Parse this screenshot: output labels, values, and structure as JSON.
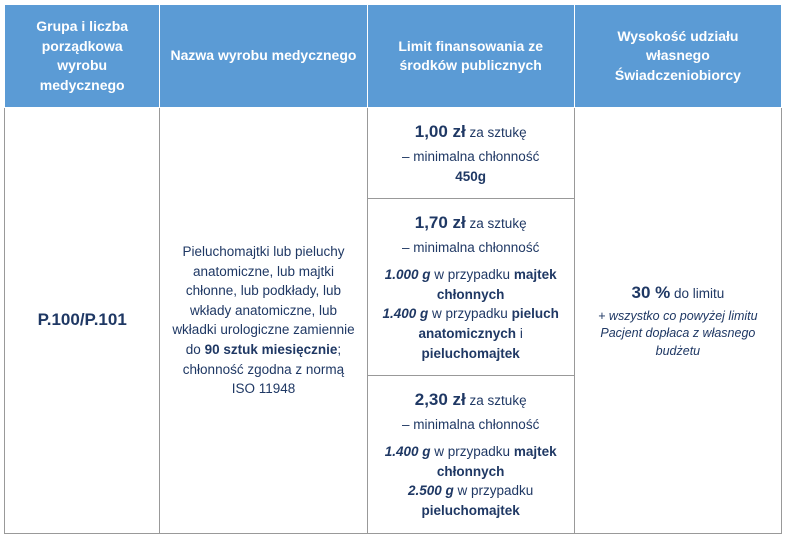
{
  "colors": {
    "header_bg": "#5b9bd5",
    "header_text": "#ffffff",
    "body_text": "#1f3864",
    "border": "#999999",
    "header_border": "#ffffff"
  },
  "headers": {
    "col1": "Grupa i liczba porządkowa wyrobu medycznego",
    "col2": "Nazwa wyrobu medycznego",
    "col3": "Limit finansowania ze środków publicznych",
    "col4": "Wysokość udziału własnego Świadczeniobiorcy"
  },
  "row1": {
    "code": "P.100/P.101",
    "description_pre": "Pieluchomajtki lub pieluchy anatomiczne, lub majtki chłonne, lub podkłady, lub wkłady anatomiczne, lub wkładki urologiczne zamiennie do ",
    "description_bold": "90 sztuk miesięcznie",
    "description_post": "; chłonność zgodna z normą ISO 11948",
    "tiers": [
      {
        "price": "1,00 zł",
        "unit": " za sztukę",
        "sub": "– minimalna chłonność",
        "weight_bold": "450g",
        "details": []
      },
      {
        "price": "1,70 zł",
        "unit": " za sztukę",
        "sub": "– minimalna chłonność",
        "details": [
          {
            "wt": "1.000 g",
            "mid": " w przypadku ",
            "what": "majtek chłonnych"
          },
          {
            "wt": "1.400 g",
            "mid": " w przypadku ",
            "what": "pieluch anatomicznych",
            "and": " i ",
            "what2": "pieluchomajtek"
          }
        ]
      },
      {
        "price": "2,30 zł",
        "unit": " za sztukę",
        "sub": "– minimalna chłonność",
        "details": [
          {
            "wt": "1.400 g",
            "mid": " w przypadku ",
            "what": "majtek chłonnych"
          },
          {
            "wt": "2.500 g",
            "mid": " w przypadku ",
            "what": "pieluchomajtek"
          }
        ]
      }
    ],
    "share": {
      "pct": "30 %",
      "pct_sub": " do limitu",
      "note": "+ wszystko co powyżej limitu Pacjent dopłaca z własnego budżetu"
    }
  }
}
